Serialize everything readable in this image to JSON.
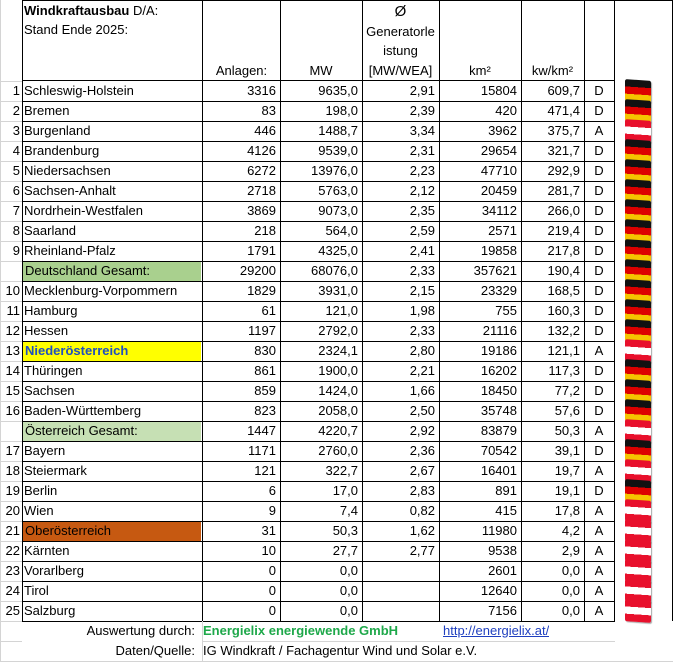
{
  "header": {
    "title": "Windkraftausbau",
    "title_suffix": " D/A:",
    "subtitle": "Stand Ende 2025:",
    "col_anlagen": "Anlagen:",
    "col_mw": "MW",
    "col_gen_symbol": "Ø",
    "col_gen_line1": "Generatorle",
    "col_gen_line2": "istung",
    "col_gen_line3": "[MW/WEA]",
    "col_km2": "km²",
    "col_kwkm2": "kw/km²"
  },
  "rows": [
    {
      "rank": "1",
      "name": "Schleswig-Holstein",
      "anlagen": "3316",
      "mw": "9635,0",
      "gen": "2,91",
      "km2": "15804",
      "kwkm2": "609,7",
      "country": "D",
      "style": ""
    },
    {
      "rank": "2",
      "name": "Bremen",
      "anlagen": "83",
      "mw": "198,0",
      "gen": "2,39",
      "km2": "420",
      "kwkm2": "471,4",
      "country": "D",
      "style": ""
    },
    {
      "rank": "3",
      "name": "Burgenland",
      "anlagen": "446",
      "mw": "1488,7",
      "gen": "3,34",
      "km2": "3962",
      "kwkm2": "375,7",
      "country": "A",
      "style": ""
    },
    {
      "rank": "4",
      "name": "Brandenburg",
      "anlagen": "4126",
      "mw": "9539,0",
      "gen": "2,31",
      "km2": "29654",
      "kwkm2": "321,7",
      "country": "D",
      "style": ""
    },
    {
      "rank": "5",
      "name": "Niedersachsen",
      "anlagen": "6272",
      "mw": "13976,0",
      "gen": "2,23",
      "km2": "47710",
      "kwkm2": "292,9",
      "country": "D",
      "style": ""
    },
    {
      "rank": "6",
      "name": "Sachsen-Anhalt",
      "anlagen": "2718",
      "mw": "5763,0",
      "gen": "2,12",
      "km2": "20459",
      "kwkm2": "281,7",
      "country": "D",
      "style": ""
    },
    {
      "rank": "7",
      "name": "Nordrhein-Westfalen",
      "anlagen": "3869",
      "mw": "9073,0",
      "gen": "2,35",
      "km2": "34112",
      "kwkm2": "266,0",
      "country": "D",
      "style": ""
    },
    {
      "rank": "8",
      "name": "Saarland",
      "anlagen": "218",
      "mw": "564,0",
      "gen": "2,59",
      "km2": "2571",
      "kwkm2": "219,4",
      "country": "D",
      "style": ""
    },
    {
      "rank": "9",
      "name": "Rheinland-Pfalz",
      "anlagen": "1791",
      "mw": "4325,0",
      "gen": "2,41",
      "km2": "19858",
      "kwkm2": "217,8",
      "country": "D",
      "style": ""
    },
    {
      "rank": "",
      "name": "Deutschland Gesamt:",
      "anlagen": "29200",
      "mw": "68076,0",
      "gen": "2,33",
      "km2": "357621",
      "kwkm2": "190,4",
      "country": "D",
      "style": "total-green"
    },
    {
      "rank": "10",
      "name": "Mecklenburg-Vorpommern",
      "anlagen": "1829",
      "mw": "3931,0",
      "gen": "2,15",
      "km2": "23329",
      "kwkm2": "168,5",
      "country": "D",
      "style": ""
    },
    {
      "rank": "11",
      "name": "Hamburg",
      "anlagen": "61",
      "mw": "121,0",
      "gen": "1,98",
      "km2": "755",
      "kwkm2": "160,3",
      "country": "D",
      "style": ""
    },
    {
      "rank": "12",
      "name": "Hessen",
      "anlagen": "1197",
      "mw": "2792,0",
      "gen": "2,33",
      "km2": "21116",
      "kwkm2": "132,2",
      "country": "D",
      "style": ""
    },
    {
      "rank": "13",
      "name": "Niederösterreich",
      "anlagen": "830",
      "mw": "2324,1",
      "gen": "2,80",
      "km2": "19186",
      "kwkm2": "121,1",
      "country": "A",
      "style": "yellow"
    },
    {
      "rank": "14",
      "name": "Thüringen",
      "anlagen": "861",
      "mw": "1900,0",
      "gen": "2,21",
      "km2": "16202",
      "kwkm2": "117,3",
      "country": "D",
      "style": ""
    },
    {
      "rank": "15",
      "name": "Sachsen",
      "anlagen": "859",
      "mw": "1424,0",
      "gen": "1,66",
      "km2": "18450",
      "kwkm2": "77,2",
      "country": "D",
      "style": ""
    },
    {
      "rank": "16",
      "name": "Baden-Württemberg",
      "anlagen": "823",
      "mw": "2058,0",
      "gen": "2,50",
      "km2": "35748",
      "kwkm2": "57,6",
      "country": "D",
      "style": ""
    },
    {
      "rank": "",
      "name": "Österreich Gesamt:",
      "anlagen": "1447",
      "mw": "4220,7",
      "gen": "2,92",
      "km2": "83879",
      "kwkm2": "50,3",
      "country": "A",
      "style": "total-lightgreen"
    },
    {
      "rank": "17",
      "name": "Bayern",
      "anlagen": "1171",
      "mw": "2760,0",
      "gen": "2,36",
      "km2": "70542",
      "kwkm2": "39,1",
      "country": "D",
      "style": ""
    },
    {
      "rank": "18",
      "name": "Steiermark",
      "anlagen": "121",
      "mw": "322,7",
      "gen": "2,67",
      "km2": "16401",
      "kwkm2": "19,7",
      "country": "A",
      "style": ""
    },
    {
      "rank": "19",
      "name": "Berlin",
      "anlagen": "6",
      "mw": "17,0",
      "gen": "2,83",
      "km2": "891",
      "kwkm2": "19,1",
      "country": "D",
      "style": ""
    },
    {
      "rank": "20",
      "name": "Wien",
      "anlagen": "9",
      "mw": "7,4",
      "gen": "0,82",
      "km2": "415",
      "kwkm2": "17,8",
      "country": "A",
      "style": ""
    },
    {
      "rank": "21",
      "name": "Oberösterreich",
      "anlagen": "31",
      "mw": "50,3",
      "gen": "1,62",
      "km2": "11980",
      "kwkm2": "4,2",
      "country": "A",
      "style": "orange"
    },
    {
      "rank": "22",
      "name": "Kärnten",
      "anlagen": "10",
      "mw": "27,7",
      "gen": "2,77",
      "km2": "9538",
      "kwkm2": "2,9",
      "country": "A",
      "style": ""
    },
    {
      "rank": "23",
      "name": "Vorarlberg",
      "anlagen": "0",
      "mw": "0,0",
      "gen": "",
      "km2": "2601",
      "kwkm2": "0,0",
      "country": "A",
      "style": ""
    },
    {
      "rank": "24",
      "name": "Tirol",
      "anlagen": "0",
      "mw": "0,0",
      "gen": "",
      "km2": "12640",
      "kwkm2": "0,0",
      "country": "A",
      "style": ""
    },
    {
      "rank": "25",
      "name": "Salzburg",
      "anlagen": "0",
      "mw": "0,0",
      "gen": "",
      "km2": "7156",
      "kwkm2": "0,0",
      "country": "A",
      "style": ""
    }
  ],
  "footer": {
    "auswertung_label": "Auswertung durch:",
    "auswertung_value": "Energielix energiewende GmbH",
    "link": "http://energielix.at/",
    "quelle_label": "Daten/Quelle:",
    "quelle_value": "IG Windkraft / Fachagentur Wind und Solar e.V."
  },
  "colors": {
    "total_green": "#a9d08e",
    "total_lightgreen": "#c6e0b4",
    "yellow": "#ffff00",
    "yellow_text": "#1f4fbf",
    "orange": "#c65911",
    "link": "#1f3fbf",
    "footer_green": "#1ea84a"
  },
  "flags": {
    "D": "flag-germany-icon",
    "A": "flag-austria-icon"
  }
}
